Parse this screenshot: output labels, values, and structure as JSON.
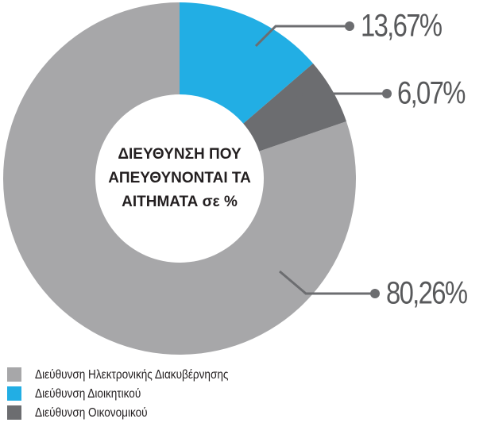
{
  "chart_data": {
    "type": "donut",
    "title": [
      "ΔΙΕΥΘΥΝΣΗ ΠΟΥ",
      "ΑΠΕΥΘΥΝΟΝΤΑΙ ΤΑ",
      "ΑΙΤΗΜΑΤΑ σε %"
    ],
    "categories": [
      "Διεύθυνση Ηλεκτρονικής Διακυβέρνησης",
      "Διεύθυνση Διοικητικού",
      "Διεύθυνση Οικονομικού"
    ],
    "values": [
      80.26,
      13.67,
      6.07
    ],
    "value_labels": [
      "80,26%",
      "13,67%",
      "6,07%"
    ],
    "colors": [
      "#a7a7a9",
      "#22aee4",
      "#6c6d70"
    ]
  }
}
